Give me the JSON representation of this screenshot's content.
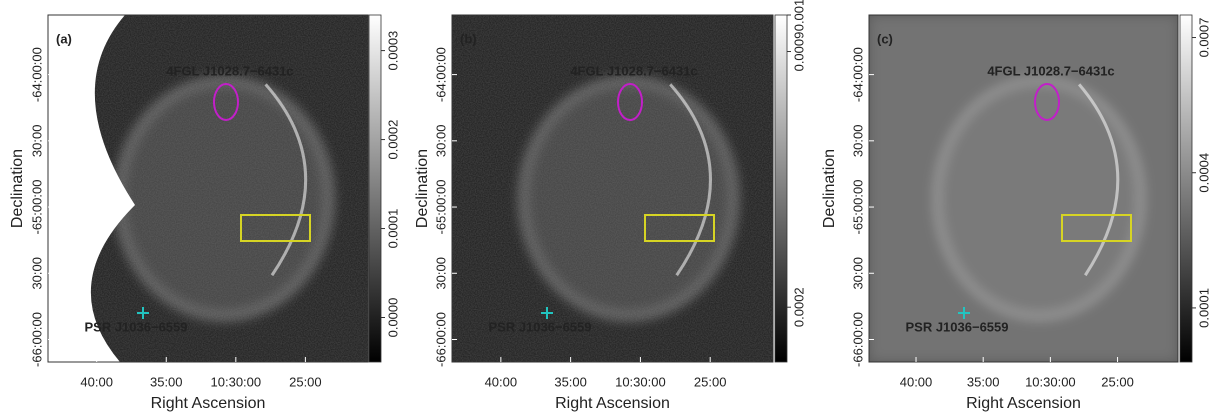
{
  "chart_data": [
    {
      "type": "image",
      "panel_label": "(a)",
      "xlabel": "Right Ascension",
      "ylabel": "Declination",
      "xlim": [
        643.5,
        620.5
      ],
      "xticks": [
        {
          "value": 640,
          "label": "40:00"
        },
        {
          "value": 635,
          "label": "35:00"
        },
        {
          "value": 630,
          "label": "10:30:00"
        },
        {
          "value": 625,
          "label": "25:00"
        }
      ],
      "ylim": [
        -66.17,
        -63.55
      ],
      "yticks": [
        {
          "value": -64,
          "label": "-64:00:00"
        },
        {
          "value": -64.5,
          "label": "30:00"
        },
        {
          "value": -65,
          "label": "-65:00:00"
        },
        {
          "value": -65.5,
          "label": "30:00"
        },
        {
          "value": -66,
          "label": "-66:00:00"
        }
      ],
      "clim": [
        -5e-05,
        0.00034
      ],
      "cticks": [
        {
          "value": 0,
          "label": "0.0000"
        },
        {
          "value": 0.0001,
          "label": "0.0001"
        },
        {
          "value": 0.0002,
          "label": "0.0002"
        },
        {
          "value": 0.0003,
          "label": "0.0003"
        }
      ],
      "annotations": [
        {
          "text": "4FGL J1028.7−6431c",
          "color": "#c21fc9"
        },
        {
          "text": "PSR J1036−6559",
          "color": "#22c4c0"
        }
      ]
    },
    {
      "type": "image",
      "panel_label": "(b)",
      "xlabel": "Right Ascension",
      "ylabel": "Declination",
      "xlim": [
        643.5,
        620.5
      ],
      "xticks": [
        {
          "value": 640,
          "label": "40:00"
        },
        {
          "value": 635,
          "label": "35:00"
        },
        {
          "value": 630,
          "label": "10:30:00"
        },
        {
          "value": 625,
          "label": "25:00"
        }
      ],
      "ylim": [
        -66.17,
        -63.55
      ],
      "yticks": [
        {
          "value": -64,
          "label": "-64:00:00"
        },
        {
          "value": -64.5,
          "label": "30:00"
        },
        {
          "value": -65,
          "label": "-65:00:00"
        },
        {
          "value": -65.5,
          "label": "30:00"
        },
        {
          "value": -66,
          "label": "-66:00:00"
        }
      ],
      "clim": [
        5e-05,
        0.001
      ],
      "cticks": [
        {
          "value": 0.0002,
          "label": "0.0002"
        },
        {
          "value": 0.0009,
          "label": "0.0009"
        },
        {
          "value": 0.001,
          "label": "0.001"
        }
      ],
      "annotations": [
        {
          "text": "4FGL J1028.7−6431c",
          "color": "#c21fc9"
        },
        {
          "text": "PSR J1036−6559",
          "color": "#22c4c0"
        }
      ]
    },
    {
      "type": "image",
      "panel_label": "(c)",
      "xlabel": "Right Ascension",
      "ylabel": "Declination",
      "xlim": [
        643.5,
        620.5
      ],
      "xticks": [
        {
          "value": 640,
          "label": "40:00"
        },
        {
          "value": 635,
          "label": "35:00"
        },
        {
          "value": 630,
          "label": "10:30:00"
        },
        {
          "value": 625,
          "label": "25:00"
        }
      ],
      "ylim": [
        -66.17,
        -63.55
      ],
      "yticks": [
        {
          "value": -64,
          "label": "-64:00:00"
        },
        {
          "value": -64.5,
          "label": "30:00"
        },
        {
          "value": -65,
          "label": "-65:00:00"
        },
        {
          "value": -65.5,
          "label": "30:00"
        },
        {
          "value": -66,
          "label": "-66:00:00"
        }
      ],
      "clim": [
        -2e-05,
        0.00075
      ],
      "cticks": [
        {
          "value": 0.0001,
          "label": "0.0001"
        },
        {
          "value": 0.0004,
          "label": "0.0004"
        },
        {
          "value": 0.0007,
          "label": "0.0007"
        }
      ],
      "annotations": [
        {
          "text": "4FGL J1028.7−6431c",
          "color": "#c21fc9"
        },
        {
          "text": "PSR J1036−6559",
          "color": "#22c4c0"
        }
      ]
    }
  ]
}
